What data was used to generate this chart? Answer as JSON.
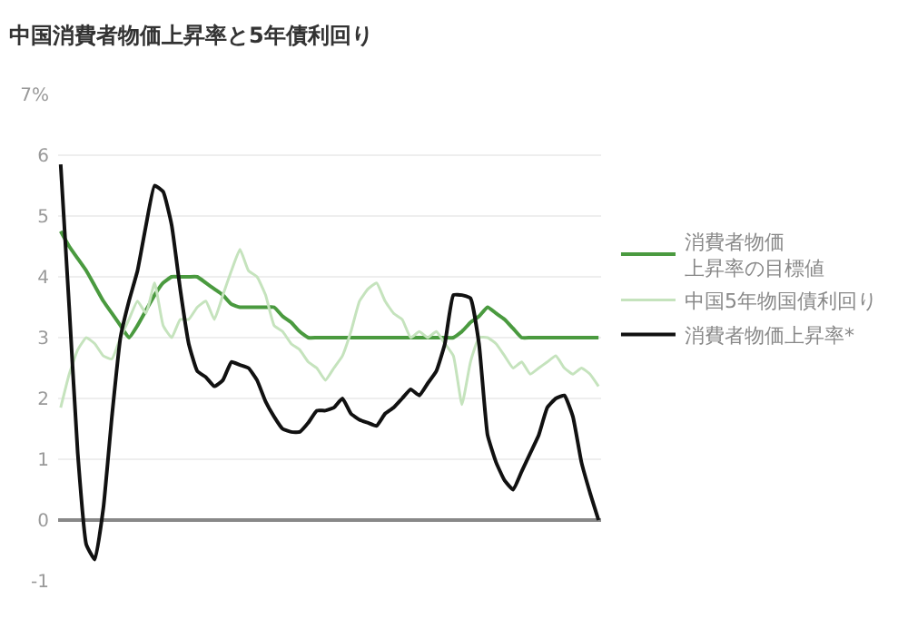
{
  "chart_data": {
    "type": "line",
    "title": "中国消費者物価上昇率と5年債利回り",
    "categories": [
      null,
      null,
      null,
      null,
      null,
      null,
      null,
      null,
      null,
      null,
      null,
      null,
      null,
      null,
      null,
      null,
      null,
      null,
      null,
      null,
      null,
      null,
      null,
      null,
      null,
      null,
      null,
      null,
      null,
      null,
      null,
      null,
      null,
      null,
      null,
      null,
      null,
      null,
      null,
      null,
      null,
      null,
      null,
      null,
      null,
      null,
      null,
      null,
      null,
      null,
      null,
      null,
      null,
      null,
      null,
      null,
      null,
      null,
      null,
      null,
      null,
      null,
      null,
      null
    ],
    "series": [
      {
        "name": "消費者物価上昇率の目標値",
        "color": "#4a9a3f",
        "values": [
          4.75,
          4.5,
          4.3,
          4.1,
          3.85,
          3.6,
          3.4,
          3.2,
          3.0,
          3.2,
          3.45,
          3.7,
          3.9,
          4.0,
          4.0,
          4.0,
          4.0,
          3.9,
          3.8,
          3.7,
          3.55,
          3.5,
          3.5,
          3.5,
          3.5,
          3.5,
          3.35,
          3.25,
          3.1,
          3.0,
          3.0,
          3.0,
          3.0,
          3.0,
          3.0,
          3.0,
          3.0,
          3.0,
          3.0,
          3.0,
          3.0,
          3.0,
          3.0,
          3.0,
          3.0,
          3.0,
          3.0,
          3.1,
          3.25,
          3.35,
          3.5,
          3.4,
          3.3,
          3.15,
          3.0,
          3.0,
          3.0,
          3.0,
          3.0,
          3.0,
          3.0,
          3.0,
          3.0,
          3.0
        ]
      },
      {
        "name": "中国5年物国債利回り",
        "color": "#c5e3bd",
        "values": [
          1.85,
          2.4,
          2.8,
          3.0,
          2.9,
          2.7,
          2.65,
          3.0,
          3.3,
          3.6,
          3.4,
          3.9,
          3.2,
          3.0,
          3.3,
          3.3,
          3.5,
          3.6,
          3.3,
          3.7,
          4.1,
          4.45,
          4.1,
          4.0,
          3.7,
          3.2,
          3.1,
          2.9,
          2.8,
          2.6,
          2.5,
          2.3,
          2.5,
          2.7,
          3.1,
          3.6,
          3.8,
          3.9,
          3.6,
          3.4,
          3.3,
          3.0,
          3.1,
          3.0,
          3.1,
          2.9,
          2.7,
          1.9,
          2.6,
          3.0,
          3.0,
          2.9,
          2.7,
          2.5,
          2.6,
          2.4,
          2.5,
          2.6,
          2.7,
          2.5,
          2.4,
          2.5,
          2.4,
          2.2
        ]
      },
      {
        "name": "消費者物価上昇率*",
        "color": "#111111",
        "values": [
          5.85,
          3.5,
          1.1,
          -0.4,
          -0.65,
          0.2,
          1.7,
          3.0,
          3.6,
          4.1,
          4.85,
          5.5,
          5.4,
          4.85,
          3.8,
          2.9,
          2.45,
          2.35,
          2.2,
          2.3,
          2.6,
          2.55,
          2.5,
          2.3,
          1.95,
          1.7,
          1.5,
          1.45,
          1.45,
          1.6,
          1.8,
          1.8,
          1.85,
          2.0,
          1.75,
          1.65,
          1.6,
          1.55,
          1.75,
          1.85,
          2.0,
          2.15,
          2.05,
          2.25,
          2.45,
          2.9,
          3.7,
          3.7,
          3.65,
          2.9,
          1.4,
          0.95,
          0.65,
          0.5,
          0.8,
          1.1,
          1.4,
          1.85,
          2.0,
          2.05,
          1.7,
          0.95,
          0.45,
          0.0
        ]
      }
    ],
    "ylim": [
      -1,
      7
    ],
    "yticks": [
      {
        "value": 7,
        "label": "7%"
      },
      6,
      5,
      4,
      3,
      2,
      1,
      0,
      -1
    ],
    "grid": "y",
    "legend": "right",
    "marker": "none",
    "line_style": "solid"
  }
}
